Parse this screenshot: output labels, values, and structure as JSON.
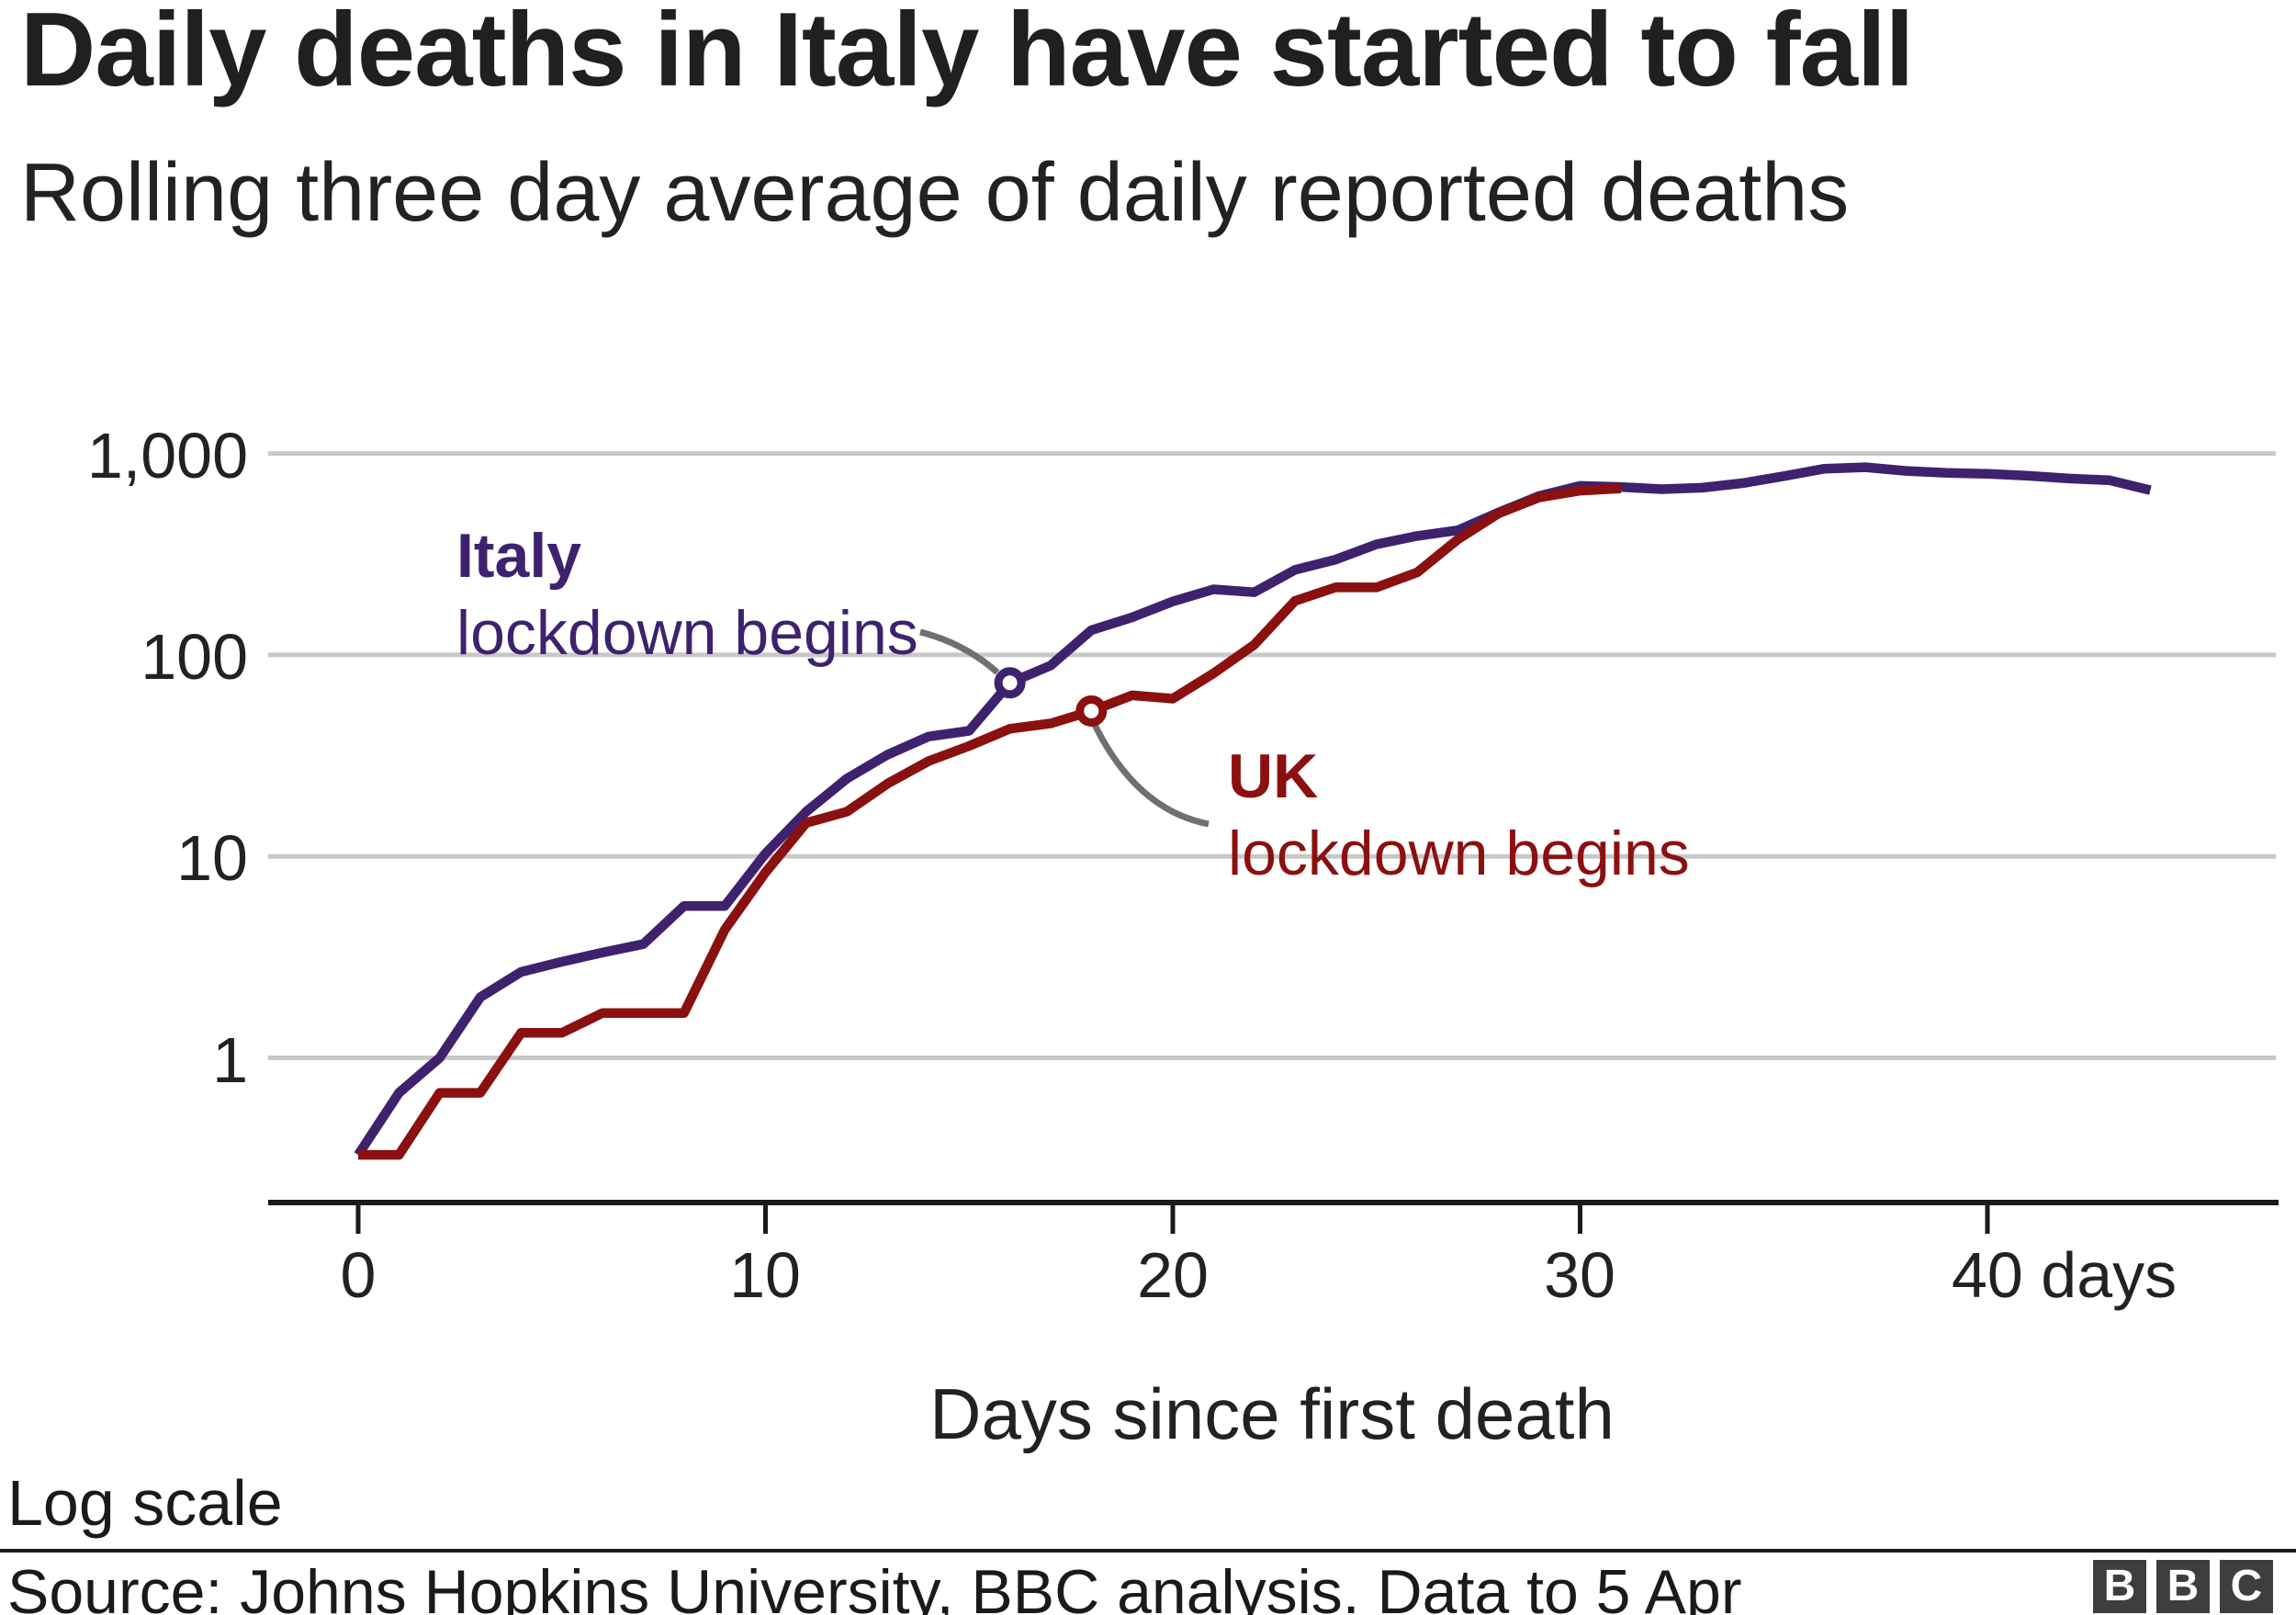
{
  "header": {
    "title": "Daily deaths in Italy have started to fall",
    "subtitle": "Rolling three day average of daily reported deaths"
  },
  "chart_data": {
    "type": "line",
    "title": "Daily deaths in Italy have started to fall",
    "subtitle": "Rolling three day average of daily reported deaths",
    "xlabel": "Days since first death",
    "ylabel": "",
    "x_axis": {
      "ticks": [
        "0",
        "10",
        "20",
        "30",
        "40 days"
      ],
      "tick_days": [
        0,
        10,
        20,
        30,
        40
      ],
      "range_days": [
        0,
        47
      ]
    },
    "y_axis": {
      "scale": "log",
      "ticks": [
        "1,000",
        "100",
        "10",
        "1"
      ],
      "tick_values": [
        1000,
        100,
        10,
        1
      ],
      "note": "Log scale"
    },
    "grid": "horizontal-only",
    "legend_position": "inline-annotations",
    "series": [
      {
        "name": "Italy",
        "color": "#3e226e",
        "start_day": 0,
        "values": [
          0.33,
          0.67,
          1.0,
          2.0,
          2.67,
          3.0,
          3.33,
          3.67,
          5.67,
          5.67,
          10.33,
          16.67,
          24.33,
          32.0,
          39.33,
          42.0,
          72.67,
          88.67,
          132.67,
          153.67,
          184.33,
          211.67,
          204.67,
          264.33,
          297.33,
          354.0,
          389.67,
          415.67,
          509.67,
          615.67,
          690.33,
          681.67,
          665.0,
          675.67,
          712.67,
          771.33,
          840.0,
          854.67,
          819.0,
          801.67,
          792.0,
          774.67,
          751.0,
          735.67,
          657.33
        ]
      },
      {
        "name": "UK",
        "color": "#8b1010",
        "start_day": 0,
        "values": [
          0.33,
          0.33,
          0.67,
          0.67,
          1.33,
          1.33,
          1.67,
          1.67,
          1.67,
          4.33,
          8.33,
          14.67,
          16.67,
          23.0,
          29.67,
          35.33,
          43.0,
          45.67,
          52.67,
          63.0,
          60.67,
          81.0,
          112.33,
          185.33,
          216.67,
          216.33,
          256.67,
          374.67,
          504.33,
          605.33,
          653.67,
          671.0
        ]
      }
    ],
    "annotations": [
      {
        "series": "Italy",
        "label_bold": "Italy",
        "label": "lockdown begins",
        "day": 16,
        "value": 72.67
      },
      {
        "series": "UK",
        "label_bold": "UK",
        "label": "lockdown begins",
        "day": 18,
        "value": 52.67
      }
    ]
  },
  "colors": {
    "italy": "#3e226e",
    "uk": "#8b1010",
    "gridline": "#c8c8c8",
    "axis": "#1a1a1a",
    "connector": "#707070",
    "logo_block": "#3e3e40"
  },
  "footer": {
    "scale_note": "Log scale",
    "source": "Source: Johns Hopkins University, BBC analysis. Data to 5 Apr",
    "logo_letters": [
      "B",
      "B",
      "C"
    ]
  }
}
